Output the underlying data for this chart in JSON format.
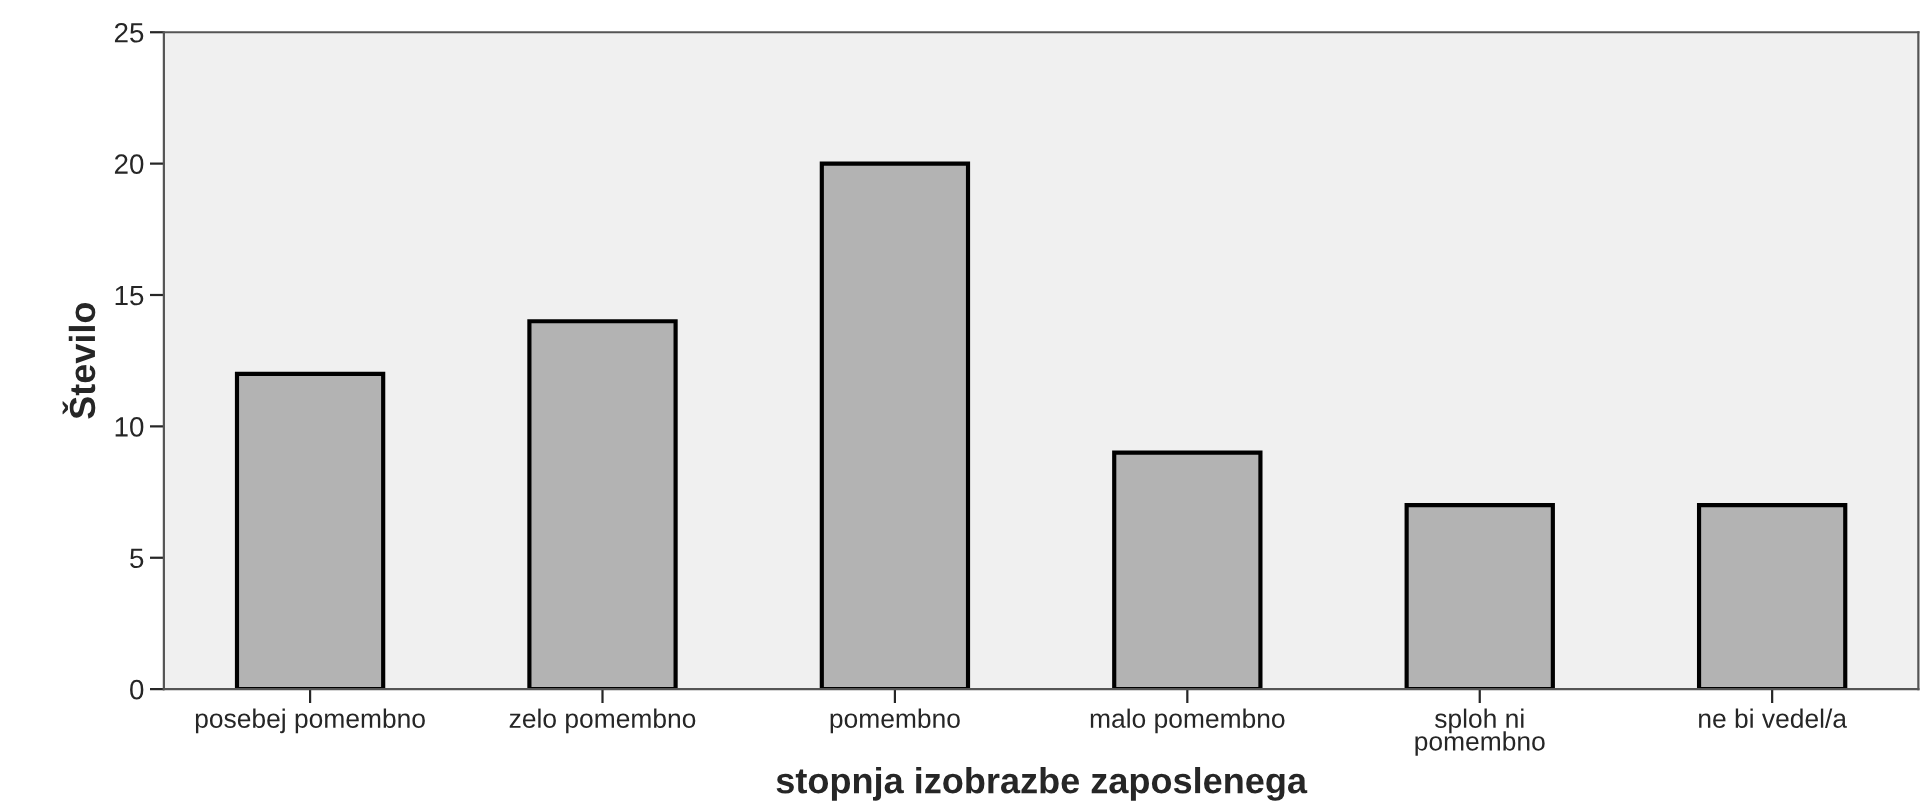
{
  "chart_data": {
    "type": "bar",
    "xlabel": "stopnja izobrazbe zaposlenega",
    "ylabel": "Število",
    "categories": [
      "posebej pomembno",
      "zelo pomembno",
      "pomembno",
      "malo pomembno",
      "sploh ni\npomembno",
      "ne bi vedel/a"
    ],
    "values": [
      12,
      14,
      20,
      9,
      7,
      7
    ],
    "color": "#b3b3b3",
    "ylim": [
      0,
      25
    ],
    "yticks": [
      0,
      5,
      10,
      15,
      20,
      25
    ],
    "grid": false
  }
}
